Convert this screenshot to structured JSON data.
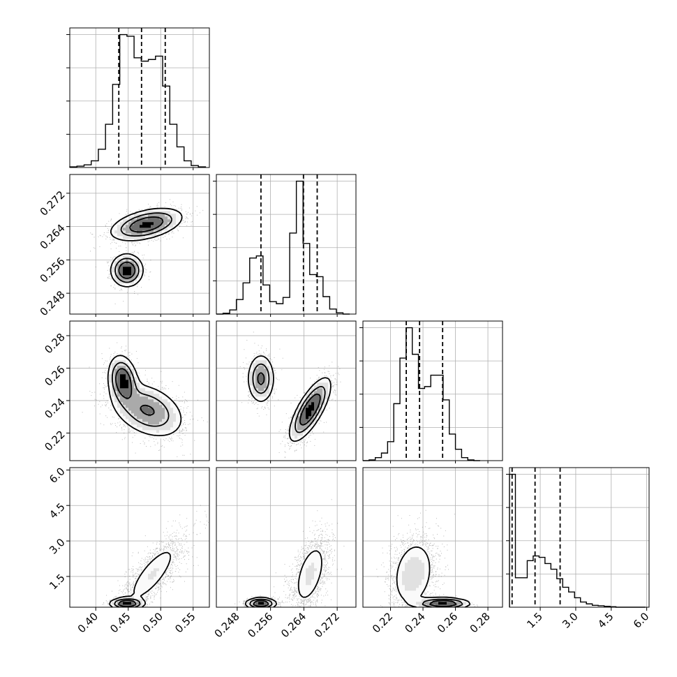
{
  "chart_data": {
    "type": "corner",
    "parameters": 4,
    "grid": true,
    "axes": [
      {
        "range": [
          0.36,
          0.575
        ],
        "tick_values": [
          0.4,
          0.45,
          0.5,
          0.55
        ],
        "tick_labels": [
          "0.40",
          "0.45",
          "0.50",
          "0.55"
        ]
      },
      {
        "range": [
          0.243,
          0.2765
        ],
        "tick_values": [
          0.248,
          0.256,
          0.264,
          0.272
        ],
        "tick_labels": [
          "0.248",
          "0.256",
          "0.264",
          "0.272"
        ]
      },
      {
        "range": [
          0.203,
          0.289
        ],
        "tick_values": [
          0.22,
          0.24,
          0.26,
          0.28
        ],
        "tick_labels": [
          "0.22",
          "0.24",
          "0.26",
          "0.28"
        ]
      },
      {
        "range": [
          0.2,
          6.1
        ],
        "tick_values": [
          1.5,
          3.0,
          4.5,
          6.0
        ],
        "tick_labels": [
          "1.5",
          "3.0",
          "4.5",
          "6.0"
        ]
      }
    ],
    "histograms": [
      {
        "bin_edges": [
          0.36,
          0.371,
          0.382,
          0.393,
          0.404,
          0.415,
          0.426,
          0.437,
          0.448,
          0.459,
          0.47,
          0.481,
          0.492,
          0.503,
          0.514,
          0.525,
          0.536,
          0.547,
          0.558,
          0.569
        ],
        "counts": [
          2,
          4,
          8,
          20,
          55,
          130,
          250,
          400,
          395,
          330,
          320,
          325,
          335,
          245,
          130,
          62,
          20,
          6,
          2
        ],
        "quantiles": [
          0.4355,
          0.4705,
          0.507
        ]
      },
      {
        "bin_edges": [
          0.243,
          0.2446,
          0.2462,
          0.2478,
          0.2494,
          0.251,
          0.2526,
          0.2542,
          0.2558,
          0.2574,
          0.259,
          0.2606,
          0.2622,
          0.2638,
          0.2654,
          0.267,
          0.2686,
          0.2702,
          0.2718,
          0.2734,
          0.275
        ],
        "counts": [
          0,
          2,
          10,
          35,
          75,
          135,
          140,
          70,
          30,
          25,
          40,
          195,
          320,
          170,
          95,
          90,
          42,
          12,
          3,
          0
        ],
        "quantiles": [
          0.2537,
          0.2639,
          0.2672
        ]
      },
      {
        "bin_edges": [
          0.203,
          0.2068,
          0.2106,
          0.2144,
          0.2182,
          0.222,
          0.2258,
          0.2296,
          0.2334,
          0.2372,
          0.241,
          0.2448,
          0.2486,
          0.2524,
          0.2562,
          0.26,
          0.2638,
          0.2676,
          0.2714,
          0.2752
        ],
        "counts": [
          0,
          2,
          8,
          20,
          50,
          150,
          270,
          350,
          280,
          190,
          195,
          225,
          225,
          160,
          70,
          30,
          8,
          2,
          0
        ],
        "quantiles": [
          0.2297,
          0.2379,
          0.2521
        ]
      },
      {
        "bin_edges": [
          0.2,
          0.45,
          0.7,
          0.95,
          1.2,
          1.45,
          1.7,
          1.95,
          2.2,
          2.45,
          2.7,
          2.95,
          3.2,
          3.45,
          3.7,
          3.95,
          4.2,
          4.45,
          4.7,
          4.95,
          5.2,
          5.45,
          5.7,
          5.95
        ],
        "counts": [
          280,
          62,
          62,
          98,
          108,
          105,
          92,
          80,
          60,
          42,
          32,
          20,
          11,
          7,
          4,
          3,
          2,
          1,
          0,
          0,
          0,
          0,
          0,
          0
        ],
        "quantiles": [
          0.31,
          1.28,
          2.34
        ]
      }
    ],
    "pairs": [
      {
        "x": 0,
        "y": 1,
        "modes": [
          {
            "cx": 0.448,
            "cy": 0.2535,
            "sx": 0.012,
            "sy": 0.0019,
            "r": 0,
            "w": 0.35
          },
          {
            "cx": 0.478,
            "cy": 0.2645,
            "sx": 0.027,
            "sy": 0.0019,
            "r": 0.45,
            "w": 0.65
          }
        ]
      },
      {
        "x": 0,
        "y": 2,
        "modes": [
          {
            "cx": 0.442,
            "cy": 0.2525,
            "sx": 0.011,
            "sy": 0.0075,
            "r": -0.2,
            "w": 0.35
          },
          {
            "cx": 0.48,
            "cy": 0.234,
            "sx": 0.028,
            "sy": 0.0085,
            "r": -0.35,
            "w": 0.65
          }
        ]
      },
      {
        "x": 0,
        "y": 3,
        "modes": [
          {
            "cx": 0.448,
            "cy": 0.35,
            "sx": 0.013,
            "sy": 0.12,
            "r": 0,
            "w": 0.35
          },
          {
            "cx": 0.487,
            "cy": 1.6,
            "sx": 0.026,
            "sy": 0.85,
            "r": 0.8,
            "w": 0.65
          }
        ]
      },
      {
        "x": 1,
        "y": 2,
        "modes": [
          {
            "cx": 0.2537,
            "cy": 0.2535,
            "sx": 0.0016,
            "sy": 0.0075,
            "r": 0,
            "w": 0.35
          },
          {
            "cx": 0.2655,
            "cy": 0.2345,
            "sx": 0.0024,
            "sy": 0.0095,
            "r": 0.75,
            "w": 0.65
          }
        ]
      },
      {
        "x": 1,
        "y": 3,
        "modes": [
          {
            "cx": 0.2537,
            "cy": 0.35,
            "sx": 0.0018,
            "sy": 0.12,
            "r": 0,
            "w": 0.35
          },
          {
            "cx": 0.2655,
            "cy": 1.6,
            "sx": 0.0024,
            "sy": 0.85,
            "r": 0.5,
            "w": 0.65
          }
        ]
      },
      {
        "x": 2,
        "y": 3,
        "modes": [
          {
            "cx": 0.2525,
            "cy": 0.35,
            "sx": 0.008,
            "sy": 0.12,
            "r": 0,
            "w": 0.35
          },
          {
            "cx": 0.234,
            "cy": 1.6,
            "sx": 0.0075,
            "sy": 0.85,
            "r": 0.2,
            "w": 0.65
          }
        ]
      }
    ]
  }
}
